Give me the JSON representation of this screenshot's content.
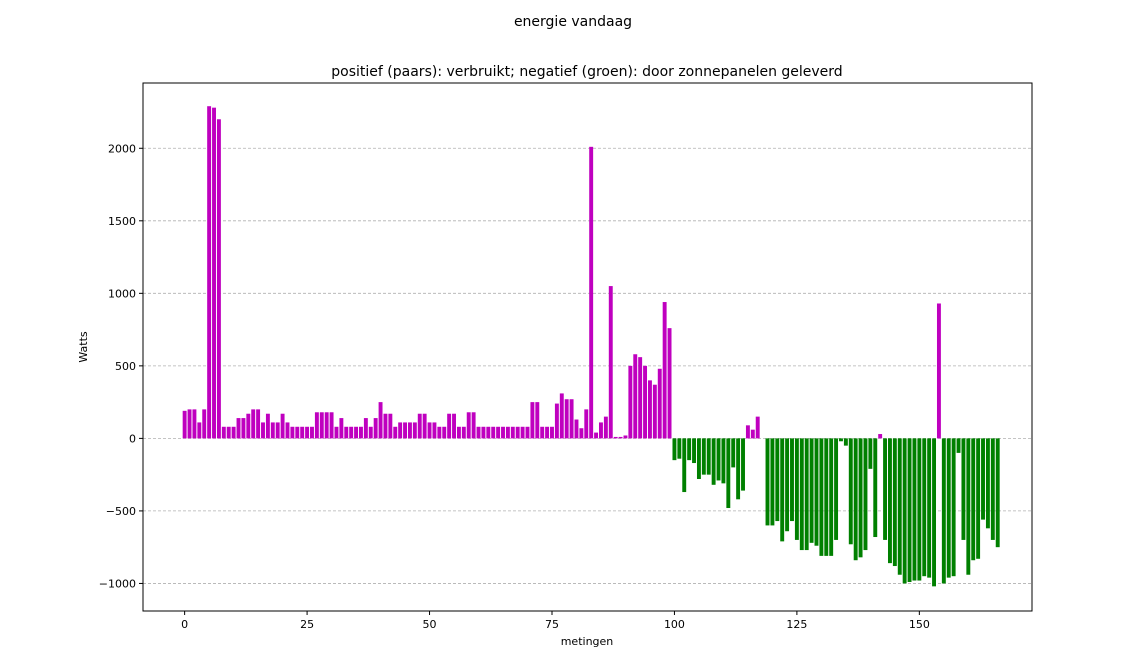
{
  "chart_data": {
    "type": "bar",
    "suptitle": "energie vandaag",
    "title": "positief (paars): verbruikt; negatief (groen): door zonnepanelen geleverd",
    "xlabel": "metingen",
    "ylabel": "Watts",
    "xlim": [
      -8.5,
      173
    ],
    "ylim": [
      -1190,
      2450
    ],
    "xticks": [
      0,
      25,
      50,
      75,
      100,
      125,
      150
    ],
    "xtick_labels": [
      "0",
      "25",
      "50",
      "75",
      "100",
      "125",
      "150"
    ],
    "yticks": [
      -1000,
      -500,
      0,
      500,
      1000,
      1500,
      2000
    ],
    "ytick_labels": [
      "−1000",
      "−500",
      "0",
      "500",
      "1000",
      "1500",
      "2000"
    ],
    "grid": "y-dashed",
    "colors": {
      "positive": "#bf00bf",
      "negative": "#008000",
      "grid": "#b0b0b0"
    },
    "values": [
      190,
      200,
      200,
      110,
      200,
      2290,
      2280,
      2200,
      80,
      80,
      80,
      140,
      140,
      170,
      200,
      200,
      110,
      170,
      110,
      110,
      170,
      110,
      80,
      80,
      80,
      80,
      80,
      180,
      180,
      180,
      180,
      80,
      140,
      80,
      80,
      80,
      80,
      140,
      80,
      140,
      250,
      170,
      170,
      80,
      110,
      110,
      110,
      110,
      170,
      170,
      110,
      110,
      80,
      80,
      170,
      170,
      80,
      80,
      180,
      180,
      80,
      80,
      80,
      80,
      80,
      80,
      80,
      80,
      80,
      80,
      80,
      250,
      250,
      80,
      80,
      80,
      240,
      310,
      270,
      270,
      130,
      70,
      200,
      2010,
      40,
      110,
      150,
      1050,
      10,
      10,
      20,
      500,
      580,
      560,
      500,
      400,
      370,
      480,
      940,
      760,
      -150,
      -140,
      -370,
      -150,
      -170,
      -280,
      -250,
      -250,
      -320,
      -290,
      -310,
      -480,
      -200,
      -420,
      -360,
      90,
      60,
      150,
      0,
      -600,
      -600,
      -570,
      -710,
      -640,
      -570,
      -700,
      -770,
      -770,
      -720,
      -740,
      -810,
      -810,
      -810,
      -700,
      -20,
      -50,
      -730,
      -840,
      -820,
      -770,
      -210,
      -680,
      30,
      -700,
      -860,
      -880,
      -940,
      -1000,
      -990,
      -980,
      -980,
      -950,
      -960,
      -1020,
      930,
      -1000,
      -960,
      -950,
      -100,
      -700,
      -940,
      -840,
      -830,
      -560,
      -620,
      -700,
      -750
    ]
  }
}
